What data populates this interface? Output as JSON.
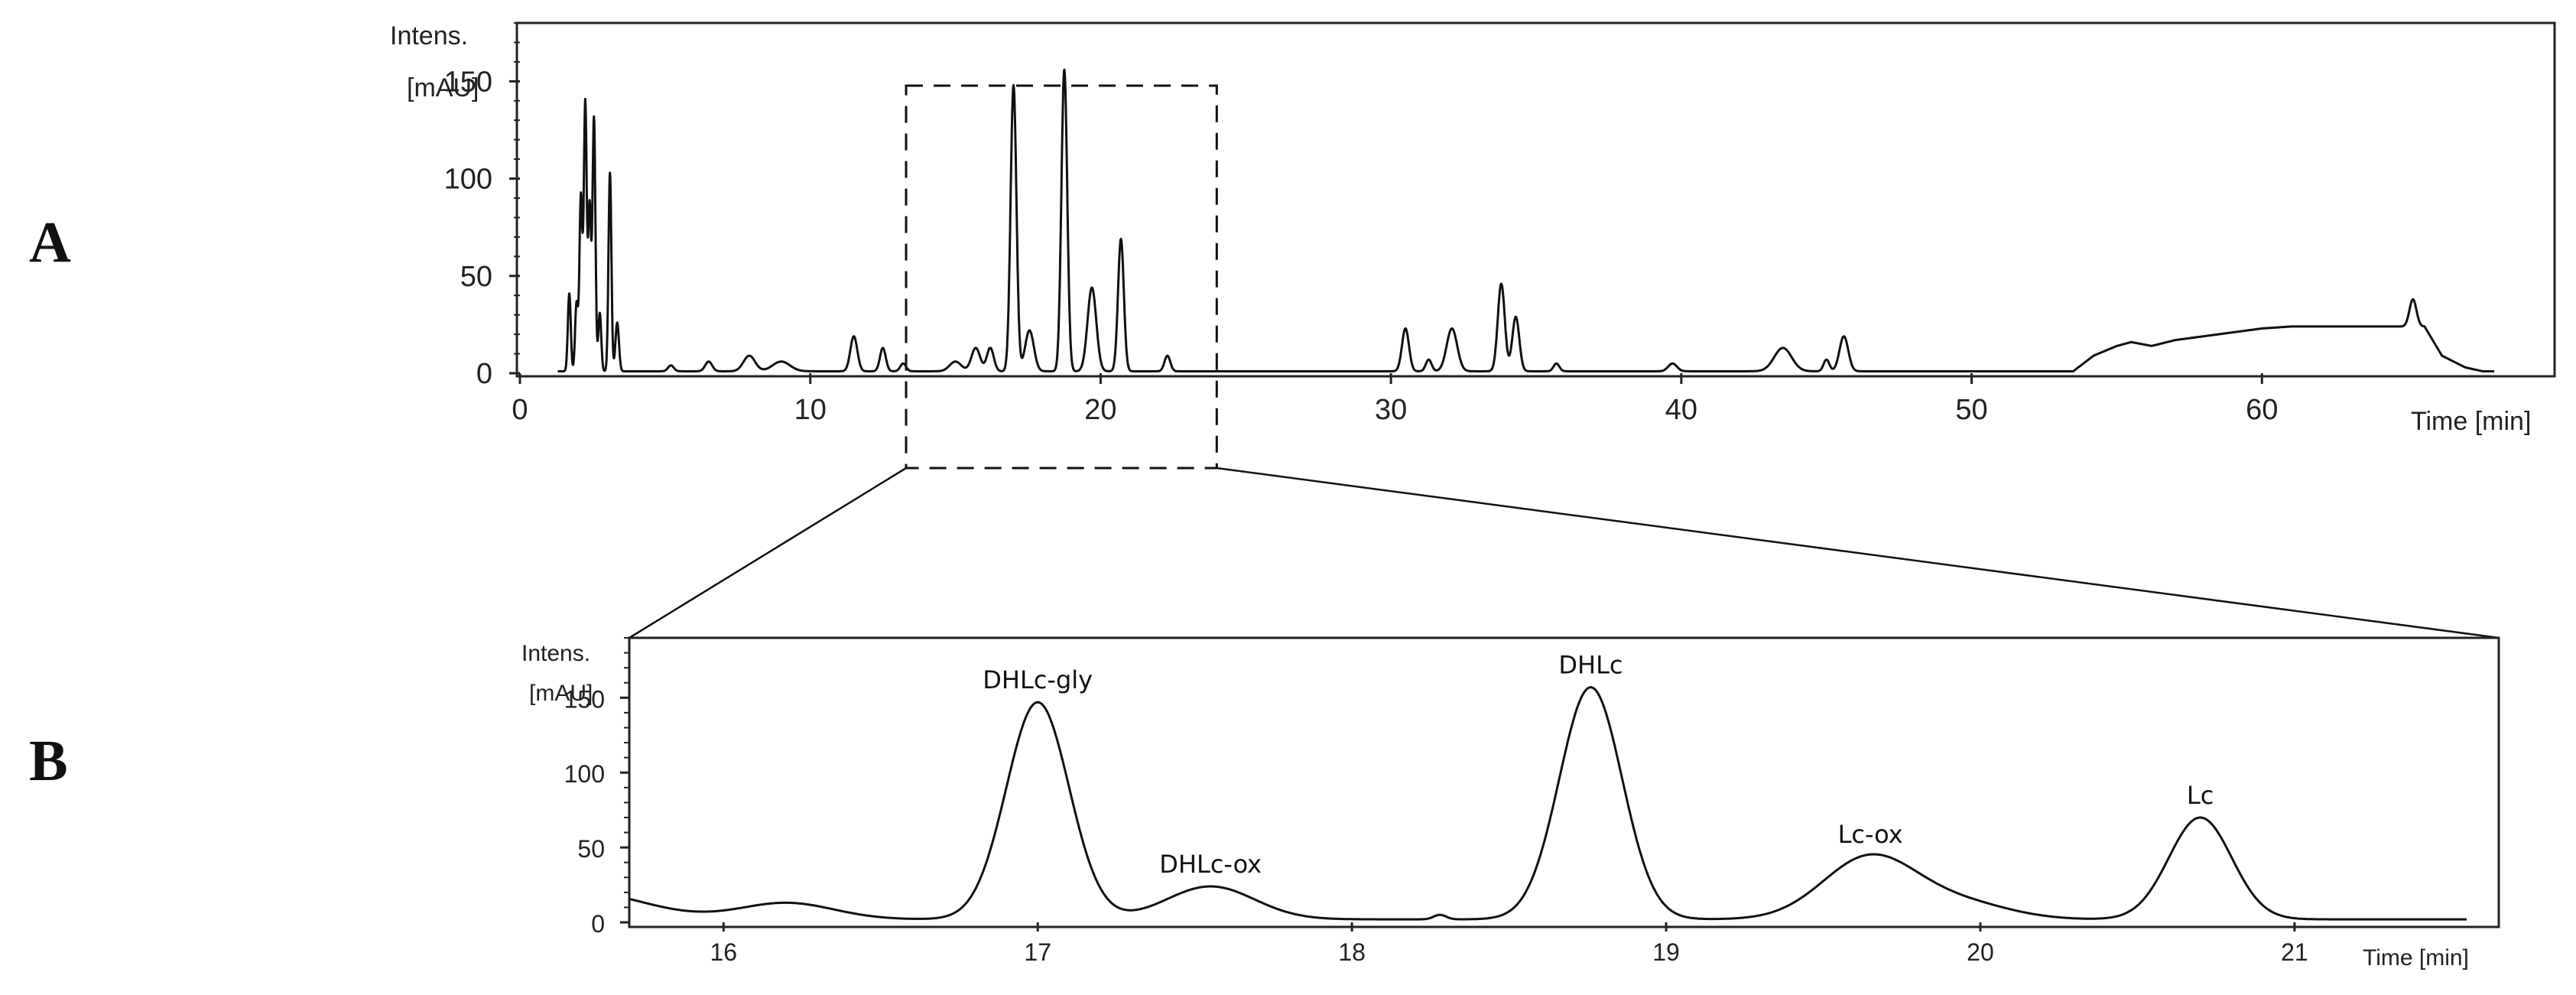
{
  "panels": {
    "a_label": "A",
    "b_label": "B"
  },
  "chart_data": [
    {
      "panel": "A",
      "type": "line",
      "ylabel_line1": "Intens.",
      "ylabel_line2": "[mAU]",
      "xlabel": "Time [min]",
      "xlim": [
        0,
        70
      ],
      "ylim": [
        0,
        180
      ],
      "xticks": [
        0,
        10,
        20,
        30,
        40,
        50,
        60
      ],
      "yticks": [
        0,
        50,
        100,
        150
      ],
      "grid": false,
      "baseline": 1,
      "peaks": [
        {
          "x": 1.7,
          "h": 40,
          "w": 0.05
        },
        {
          "x": 1.95,
          "h": 35,
          "w": 0.05
        },
        {
          "x": 2.1,
          "h": 90,
          "w": 0.05
        },
        {
          "x": 2.25,
          "h": 138,
          "w": 0.05
        },
        {
          "x": 2.4,
          "h": 85,
          "w": 0.05
        },
        {
          "x": 2.55,
          "h": 130,
          "w": 0.05
        },
        {
          "x": 2.75,
          "h": 30,
          "w": 0.05
        },
        {
          "x": 3.1,
          "h": 102,
          "w": 0.05
        },
        {
          "x": 3.35,
          "h": 25,
          "w": 0.06
        },
        {
          "x": 5.2,
          "h": 3,
          "w": 0.1
        },
        {
          "x": 6.5,
          "h": 5,
          "w": 0.12
        },
        {
          "x": 7.9,
          "h": 8,
          "w": 0.2
        },
        {
          "x": 9.0,
          "h": 5,
          "w": 0.3
        },
        {
          "x": 11.5,
          "h": 18,
          "w": 0.12
        },
        {
          "x": 12.5,
          "h": 12,
          "w": 0.1
        },
        {
          "x": 13.2,
          "h": 4,
          "w": 0.1
        },
        {
          "x": 15.0,
          "h": 5,
          "w": 0.2
        },
        {
          "x": 15.7,
          "h": 12,
          "w": 0.15
        },
        {
          "x": 16.2,
          "h": 12,
          "w": 0.12
        },
        {
          "x": 17.0,
          "h": 147,
          "w": 0.1
        },
        {
          "x": 17.55,
          "h": 21,
          "w": 0.15
        },
        {
          "x": 18.75,
          "h": 155,
          "w": 0.1
        },
        {
          "x": 19.7,
          "h": 43,
          "w": 0.15
        },
        {
          "x": 20.7,
          "h": 68,
          "w": 0.1
        },
        {
          "x": 22.3,
          "h": 8,
          "w": 0.1
        },
        {
          "x": 30.5,
          "h": 22,
          "w": 0.12
        },
        {
          "x": 31.3,
          "h": 6,
          "w": 0.1
        },
        {
          "x": 32.1,
          "h": 22,
          "w": 0.18
        },
        {
          "x": 33.8,
          "h": 45,
          "w": 0.12
        },
        {
          "x": 34.3,
          "h": 28,
          "w": 0.12
        },
        {
          "x": 35.7,
          "h": 4,
          "w": 0.1
        },
        {
          "x": 39.7,
          "h": 4,
          "w": 0.15
        },
        {
          "x": 43.5,
          "h": 12,
          "w": 0.3
        },
        {
          "x": 45.0,
          "h": 6,
          "w": 0.1
        },
        {
          "x": 45.6,
          "h": 18,
          "w": 0.15
        },
        {
          "x": 65.2,
          "h": 14,
          "w": 0.12
        }
      ],
      "plateau": [
        [
          53.5,
          0
        ],
        [
          54.2,
          8
        ],
        [
          55.0,
          13
        ],
        [
          55.5,
          15
        ],
        [
          56.2,
          13
        ],
        [
          57.0,
          16
        ],
        [
          58.0,
          18
        ],
        [
          59.0,
          20
        ],
        [
          60.0,
          22
        ],
        [
          61.0,
          23
        ],
        [
          62.0,
          23
        ],
        [
          64.5,
          23
        ],
        [
          65.6,
          23
        ],
        [
          66.2,
          8
        ],
        [
          67.0,
          2
        ],
        [
          67.6,
          0
        ]
      ]
    },
    {
      "panel": "B",
      "type": "line",
      "ylabel_line1": "Intens.",
      "ylabel_line2": "[mAU]",
      "xlabel": "Time [min]",
      "xlim": [
        15.7,
        21.65
      ],
      "ylim": [
        0,
        190
      ],
      "xticks": [
        16,
        17,
        18,
        19,
        20,
        21
      ],
      "yticks": [
        0,
        50,
        100,
        150
      ],
      "grid": false,
      "baseline": 2,
      "peaks": [
        {
          "x": 15.55,
          "h": 18,
          "w": 0.2
        },
        {
          "x": 16.2,
          "h": 11,
          "w": 0.15
        },
        {
          "x": 17.0,
          "h": 145,
          "w": 0.1
        },
        {
          "x": 17.55,
          "h": 22,
          "w": 0.14
        },
        {
          "x": 18.28,
          "h": 3,
          "w": 0.02
        },
        {
          "x": 18.76,
          "h": 155,
          "w": 0.1
        },
        {
          "x": 19.65,
          "h": 42,
          "w": 0.15
        },
        {
          "x": 19.95,
          "h": 10,
          "w": 0.15
        },
        {
          "x": 20.7,
          "h": 68,
          "w": 0.1
        }
      ],
      "annotations": [
        {
          "text": "DHLc-gly",
          "x": 17.0,
          "y": 147
        },
        {
          "text": "DHLc-ox",
          "x": 17.55,
          "y": 24
        },
        {
          "text": "DHLc",
          "x": 18.76,
          "y": 157
        },
        {
          "text": "Lc-ox",
          "x": 19.65,
          "y": 44
        },
        {
          "text": "Lc",
          "x": 20.7,
          "y": 70
        }
      ]
    }
  ],
  "zoom_region": {
    "x_start": 13.3,
    "x_end": 24.0,
    "y_top": 150
  }
}
